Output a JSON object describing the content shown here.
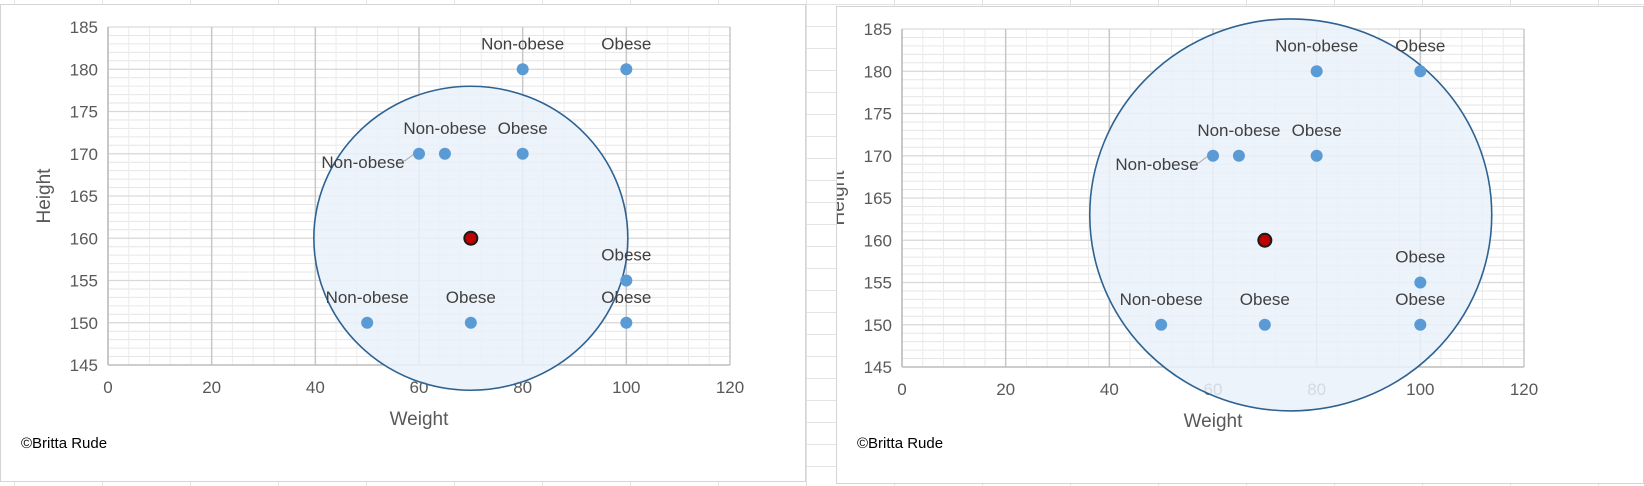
{
  "chart_data": [
    {
      "type": "scatter",
      "title": "",
      "xlabel": "Weight",
      "ylabel": "Height",
      "xlim": [
        0,
        120
      ],
      "ylim": [
        145,
        185
      ],
      "x_ticks": [
        0,
        20,
        40,
        60,
        80,
        100,
        120
      ],
      "y_ticks": [
        145,
        150,
        155,
        160,
        165,
        170,
        175,
        180,
        185
      ],
      "y_minor_step": 1,
      "grid": true,
      "legend": "none",
      "series": [
        {
          "points": [
            {
              "x": 80,
              "y": 180,
              "label": "Non-obese"
            },
            {
              "x": 100,
              "y": 180,
              "label": "Obese"
            },
            {
              "x": 60,
              "y": 170,
              "label": "Non-obese"
            },
            {
              "x": 65,
              "y": 170,
              "label": "Non-obese"
            },
            {
              "x": 80,
              "y": 170,
              "label": "Obese"
            },
            {
              "x": 100,
              "y": 155,
              "label": "Obese"
            },
            {
              "x": 50,
              "y": 150,
              "label": "Non-obese"
            },
            {
              "x": 70,
              "y": 150,
              "label": "Obese"
            },
            {
              "x": 100,
              "y": 150,
              "label": "Obese"
            }
          ]
        }
      ],
      "query_point": {
        "x": 70,
        "y": 160
      },
      "neighborhood_circle": {
        "center_x": 70,
        "center_y": 160
      }
    },
    {
      "type": "scatter",
      "title": "",
      "xlabel": "Weight",
      "ylabel": "Height",
      "xlim": [
        0,
        120
      ],
      "ylim": [
        145,
        185
      ],
      "x_ticks": [
        0,
        20,
        40,
        60,
        80,
        100,
        120
      ],
      "y_ticks": [
        145,
        150,
        155,
        160,
        165,
        170,
        175,
        180,
        185
      ],
      "y_minor_step": 1,
      "grid": true,
      "legend": "none",
      "series": [
        {
          "points": [
            {
              "x": 80,
              "y": 180,
              "label": "Non-obese"
            },
            {
              "x": 100,
              "y": 180,
              "label": "Obese"
            },
            {
              "x": 60,
              "y": 170,
              "label": "Non-obese"
            },
            {
              "x": 65,
              "y": 170,
              "label": "Non-obese"
            },
            {
              "x": 80,
              "y": 170,
              "label": "Obese"
            },
            {
              "x": 100,
              "y": 155,
              "label": "Obese"
            },
            {
              "x": 50,
              "y": 150,
              "label": "Non-obese"
            },
            {
              "x": 70,
              "y": 150,
              "label": "Obese"
            },
            {
              "x": 100,
              "y": 150,
              "label": "Obese"
            }
          ]
        }
      ],
      "query_point": {
        "x": 70,
        "y": 160
      },
      "neighborhood_circle": {
        "center_x": 75,
        "center_y": 163
      }
    }
  ],
  "credits": [
    "©Britta Rude",
    "©Britta Rude"
  ],
  "colors": {
    "point": "#5b9bd5",
    "query_point": "#c00000",
    "circle_fill": "#e9f1fa",
    "circle_stroke": "#2e6291",
    "gridline": "#d9d9d9",
    "gridline_major_x": "#c8c8c8"
  }
}
